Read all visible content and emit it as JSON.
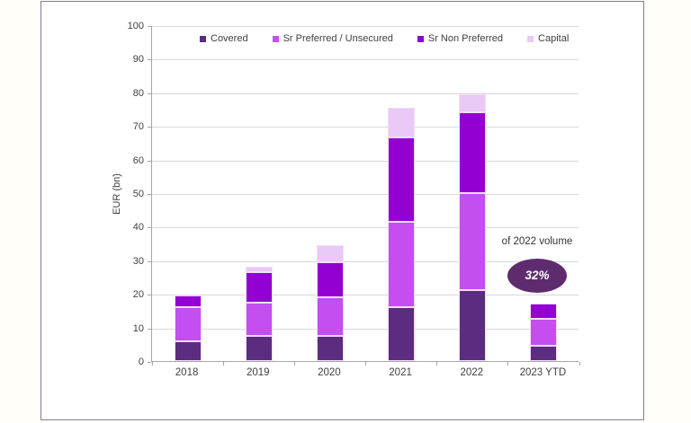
{
  "panel": {
    "border_color": "#877a96",
    "background": "#ffffff"
  },
  "chart_data": {
    "type": "bar",
    "stacked": true,
    "title": "",
    "xlabel": "",
    "ylabel": "EUR (bn)",
    "ylim": [
      0,
      100
    ],
    "yticks": [
      0,
      10,
      20,
      30,
      40,
      50,
      60,
      70,
      80,
      90,
      100
    ],
    "grid": true,
    "legend_position": "top",
    "gridline_color": "#d9d9d9",
    "axis_color": "#a6a6a6",
    "bar_outline_color": "#f4ddfb",
    "text_color": "#404040",
    "categories": [
      "2018",
      "2019",
      "2020",
      "2021",
      "2022",
      "2023 YTD"
    ],
    "series": [
      {
        "name": "Covered",
        "color": "#5b2c7f",
        "values": [
          6,
          7.5,
          7.5,
          16,
          21,
          4.5
        ]
      },
      {
        "name": "Sr Preferred / Unsecured",
        "color": "#c44ef0",
        "values": [
          10,
          10,
          11.5,
          25.5,
          29,
          8
        ]
      },
      {
        "name": "Sr Non Preferred",
        "color": "#9201d1",
        "values": [
          3.5,
          9,
          10.5,
          25,
          24,
          4.5
        ]
      },
      {
        "name": "Capital",
        "color": "#eac9f7",
        "values": [
          0,
          1.5,
          5,
          9,
          5.5,
          0
        ]
      }
    ]
  },
  "annotation": {
    "label": "of 2022 volume",
    "badge_text": "32%",
    "badge_color": "#5e2b6e",
    "badge_text_color": "#ffffff"
  }
}
